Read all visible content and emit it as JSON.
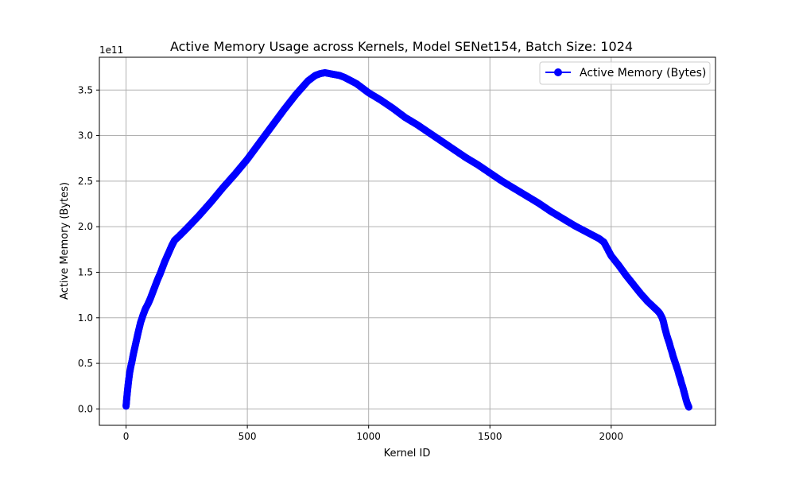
{
  "chart_data": {
    "type": "line",
    "title": "Active Memory Usage across Kernels, Model SENet154, Batch Size: 1024",
    "xlabel": "Kernel ID",
    "ylabel": "Active Memory (Bytes)",
    "y_offset_label": "1e11",
    "xlim": [
      -110,
      2430
    ],
    "ylim": [
      -0.18,
      3.86
    ],
    "y_scale": 100000000000.0,
    "xticks": [
      0,
      500,
      1000,
      1500,
      2000
    ],
    "xtick_labels": [
      "0",
      "500",
      "1000",
      "1500",
      "2000"
    ],
    "yticks": [
      0,
      0.5,
      1.0,
      1.5,
      2.0,
      2.5,
      3.0,
      3.5
    ],
    "ytick_labels": [
      "0.0",
      "0.5",
      "1.0",
      "1.5",
      "2.0",
      "2.5",
      "3.0",
      "3.5"
    ],
    "grid": true,
    "legend_position": "upper right",
    "series": [
      {
        "name": "Active Memory (Bytes)",
        "color": "#0000ff",
        "marker": "circle",
        "x": [
          0,
          3,
          6,
          10,
          15,
          20,
          25,
          30,
          40,
          50,
          60,
          70,
          80,
          90,
          100,
          110,
          120,
          130,
          140,
          150,
          160,
          170,
          180,
          190,
          200,
          220,
          250,
          300,
          350,
          400,
          450,
          500,
          550,
          600,
          650,
          700,
          750,
          780,
          800,
          820,
          840,
          860,
          880,
          900,
          950,
          1000,
          1050,
          1100,
          1150,
          1200,
          1250,
          1300,
          1350,
          1400,
          1450,
          1500,
          1550,
          1600,
          1650,
          1700,
          1750,
          1800,
          1850,
          1900,
          1950,
          1970,
          1980,
          2000,
          2030,
          2060,
          2090,
          2120,
          2150,
          2170,
          2190,
          2200,
          2210,
          2215,
          2220,
          2225,
          2230,
          2235,
          2240,
          2245,
          2250,
          2255,
          2260,
          2265,
          2270,
          2275,
          2280,
          2285,
          2290,
          2295,
          2300,
          2305,
          2310,
          2315,
          2320
        ],
        "y": [
          0.03,
          0.12,
          0.2,
          0.3,
          0.4,
          0.47,
          0.53,
          0.6,
          0.72,
          0.84,
          0.95,
          1.03,
          1.1,
          1.15,
          1.21,
          1.28,
          1.35,
          1.42,
          1.48,
          1.55,
          1.62,
          1.68,
          1.74,
          1.8,
          1.85,
          1.9,
          1.98,
          2.12,
          2.27,
          2.43,
          2.58,
          2.74,
          2.92,
          3.1,
          3.28,
          3.45,
          3.6,
          3.66,
          3.68,
          3.69,
          3.68,
          3.67,
          3.66,
          3.64,
          3.57,
          3.47,
          3.39,
          3.3,
          3.2,
          3.12,
          3.03,
          2.94,
          2.85,
          2.76,
          2.68,
          2.59,
          2.5,
          2.42,
          2.34,
          2.26,
          2.17,
          2.09,
          2.01,
          1.94,
          1.87,
          1.83,
          1.78,
          1.68,
          1.58,
          1.47,
          1.37,
          1.27,
          1.18,
          1.13,
          1.08,
          1.05,
          1.0,
          0.96,
          0.9,
          0.85,
          0.8,
          0.76,
          0.72,
          0.67,
          0.63,
          0.58,
          0.54,
          0.5,
          0.46,
          0.42,
          0.37,
          0.33,
          0.28,
          0.24,
          0.19,
          0.14,
          0.09,
          0.05,
          0.02
        ]
      }
    ]
  }
}
